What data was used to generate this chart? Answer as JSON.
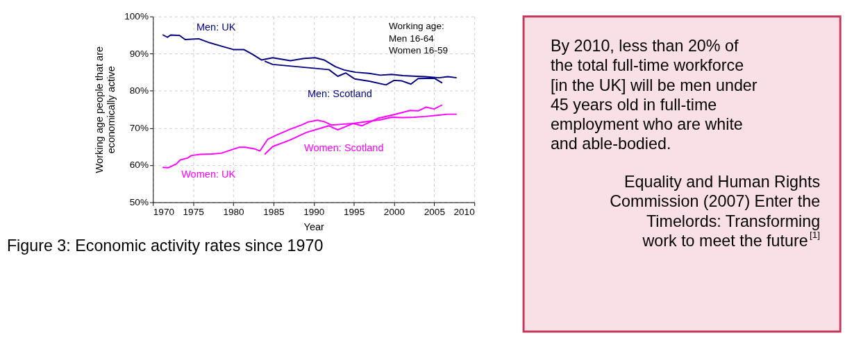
{
  "chart_data": [
    {
      "type": "line",
      "title": "Figure 3: Economic activity rates since 1970",
      "xlabel": "Year",
      "ylabel": "Working age people that are\neconomically active",
      "xlim": [
        1970,
        2010
      ],
      "xticks": [
        1970,
        1975,
        1980,
        1985,
        1990,
        1995,
        2000,
        2005,
        2010
      ],
      "ylim": [
        50,
        100
      ],
      "yticks": [
        {
          "value": 50,
          "label": "50%"
        },
        {
          "value": 60,
          "label": "60%"
        },
        {
          "value": 70,
          "label": "70%"
        },
        {
          "value": 80,
          "label": "80%"
        },
        {
          "value": 90,
          "label": "90%"
        },
        {
          "value": 100,
          "label": "100%"
        }
      ],
      "grid": true,
      "legend": false,
      "marker": "none",
      "line_style": "solid",
      "annotations": [
        "Working age:\nMen 16-64\nWomen 16-59"
      ],
      "series": [
        {
          "name": "Men: UK",
          "color": "#000080",
          "x": [
            1971.2,
            1971.8,
            1972.2,
            1973.3,
            1974.0,
            1975.7,
            1977.1,
            1978.7,
            1980.0,
            1981.3,
            1982.4,
            1983.5,
            1984.9,
            1987.1,
            1988.8,
            1990.2,
            1991.3,
            1992.7,
            1993.8,
            1995.2,
            1996.9,
            1998.3,
            1999.7,
            2001.1,
            2002.8,
            2003.9,
            2005.6,
            2006.7,
            2007.8
          ],
          "values": [
            95.1,
            94.4,
            95.0,
            94.9,
            93.8,
            94.0,
            92.9,
            91.9,
            91.1,
            91.1,
            89.8,
            88.3,
            88.9,
            88.1,
            88.7,
            88.9,
            88.3,
            86.5,
            85.6,
            85.0,
            84.7,
            84.2,
            84.4,
            84.1,
            83.9,
            83.8,
            83.5,
            83.8,
            83.5
          ]
        },
        {
          "name": "Men: Scotland",
          "color": "#000080",
          "x": [
            1983.9,
            1984.9,
            1991.9,
            1993.0,
            1994.0,
            1995.1,
            1996.9,
            1999.0,
            2000.0,
            2000.9,
            2002.1,
            2003.0,
            2005.0,
            2006.0
          ],
          "values": [
            88.0,
            87.1,
            85.7,
            83.9,
            84.8,
            83.2,
            82.6,
            81.6,
            82.8,
            82.7,
            81.8,
            83.3,
            83.4,
            82.1
          ]
        },
        {
          "name": "Women: UK",
          "color": "#ff00ff",
          "x": [
            1971.2,
            1971.9,
            1972.9,
            1973.4,
            1974.3,
            1974.8,
            1975.9,
            1977.3,
            1978.5,
            1979.6,
            1980.7,
            1981.5,
            1982.6,
            1983.3,
            1984.3,
            1985.4,
            1987.1,
            1988.5,
            1989.3,
            1990.5,
            1991.3,
            1992.2,
            1993.5,
            1994.9,
            1996.9,
            1998.3,
            1999.7,
            2001.1,
            2002.5,
            2003.9,
            2005.3,
            2006.7,
            2007.8
          ],
          "values": [
            59.4,
            59.3,
            60.3,
            61.4,
            61.9,
            62.6,
            62.9,
            63.0,
            63.2,
            64.0,
            64.8,
            64.8,
            64.4,
            63.8,
            67.0,
            68.1,
            69.7,
            70.8,
            71.6,
            72.1,
            71.7,
            70.8,
            71.0,
            71.2,
            71.8,
            72.2,
            72.9,
            72.8,
            72.9,
            73.1,
            73.4,
            73.7,
            73.7
          ]
        },
        {
          "name": "Women: Scotland",
          "color": "#ff00ff",
          "x": [
            1983.9,
            1984.9,
            1987.1,
            1989.1,
            1991.9,
            1993.0,
            1994.9,
            1996.0,
            1998.0,
            2000.0,
            2002.0,
            2003.0,
            2004.0,
            2005.0,
            2006.0
          ],
          "values": [
            62.9,
            65.0,
            66.8,
            68.8,
            70.6,
            69.5,
            71.2,
            70.6,
            72.6,
            73.6,
            74.7,
            74.6,
            75.6,
            75.1,
            76.2
          ]
        }
      ]
    },
    {
      "type": "other",
      "annotations": [
        "By 2010, less than 20% of\nthe total full-time workforce\n[in the UK] will be men under\n45 years old in full-time\nemployment who are white\nand able-bodied.",
        "Equality and Human Rights\nCommission (2007) Enter the\nTimelords: Transforming\nwork to meet the future$^{[1]}$"
      ]
    }
  ]
}
